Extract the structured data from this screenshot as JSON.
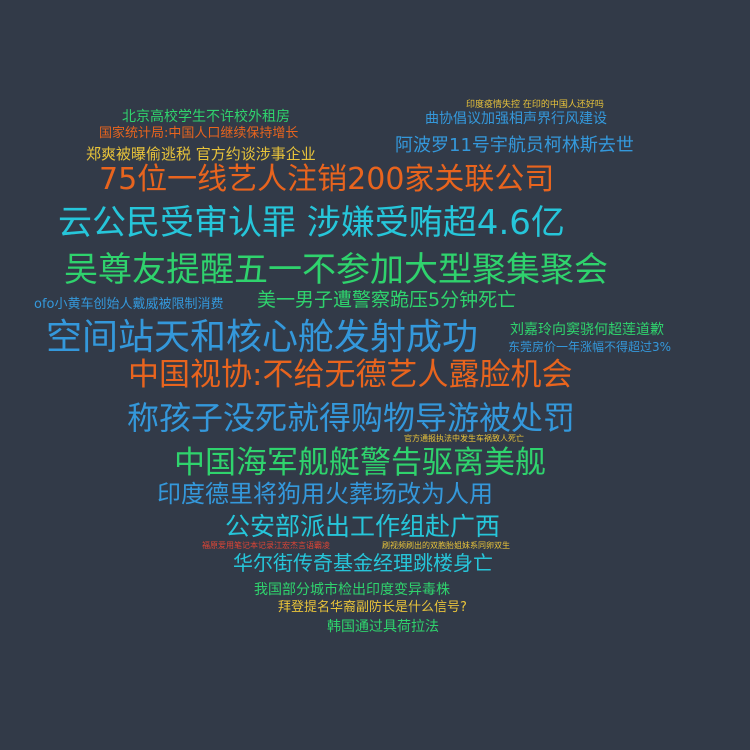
{
  "colors": {
    "background": "#323a48",
    "green": "#2fd36d",
    "blue": "#3498db",
    "orange": "#e8641e",
    "cyan": "#26c6da",
    "yellow": "#e8c33a",
    "red": "#e04535"
  },
  "words": [
    {
      "text": "北京高校学生不许校外租房",
      "color": "#2fd36d"
    },
    {
      "text": "印度疫情失控 在印的中国人还好吗",
      "color": "#e8c33a"
    },
    {
      "text": "国家统计局:中国人口继续保持增长",
      "color": "#e8641e"
    },
    {
      "text": "曲协倡议加强相声界行风建设",
      "color": "#3498db"
    },
    {
      "text": "阿波罗11号宇航员柯林斯去世",
      "color": "#3498db"
    },
    {
      "text": "郑爽被曝偷逃税 官方约谈涉事企业",
      "color": "#e8c33a"
    },
    {
      "text": "75位一线艺人注销200家关联公司",
      "color": "#e8641e"
    },
    {
      "text": "云公民受审认罪 涉嫌受贿超4.6亿",
      "color": "#26c6da"
    },
    {
      "text": "吴尊友提醒五一不参加大型聚集聚会",
      "color": "#2fd36d"
    },
    {
      "text": "ofo小黄车创始人戴威被限制消费",
      "color": "#3498db"
    },
    {
      "text": "美一男子遭警察跪压5分钟死亡",
      "color": "#2fd36d"
    },
    {
      "text": "空间站天和核心舱发射成功",
      "color": "#3498db"
    },
    {
      "text": "刘嘉玲向窦骁何超莲道歉",
      "color": "#2fd36d"
    },
    {
      "text": "东莞房价一年涨幅不得超过3%",
      "color": "#3498db"
    },
    {
      "text": "中国视协:不给无德艺人露脸机会",
      "color": "#e8641e"
    },
    {
      "text": "称孩子没死就得购物导游被处罚",
      "color": "#3498db"
    },
    {
      "text": "官方通报执法中发生车祸致人死亡",
      "color": "#e8c33a"
    },
    {
      "text": "中国海军舰艇警告驱离美舰",
      "color": "#2fd36d"
    },
    {
      "text": "印度德里将狗用火葬场改为人用",
      "color": "#3498db"
    },
    {
      "text": "公安部派出工作组赴广西",
      "color": "#26c6da"
    },
    {
      "text": "福原爱用笔记本记录江宏杰言语霸凌",
      "color": "#e04535"
    },
    {
      "text": "刷视频刷出的双胞胎姐妹系同卵双生",
      "color": "#e8c33a"
    },
    {
      "text": "华尔街传奇基金经理跳楼身亡",
      "color": "#26c6da"
    },
    {
      "text": "我国部分城市检出印度变异毒株",
      "color": "#2fd36d"
    },
    {
      "text": "拜登提名华裔副防长是什么信号?",
      "color": "#e8c33a"
    },
    {
      "text": "韩国通过具荷拉法",
      "color": "#2fd36d"
    }
  ]
}
